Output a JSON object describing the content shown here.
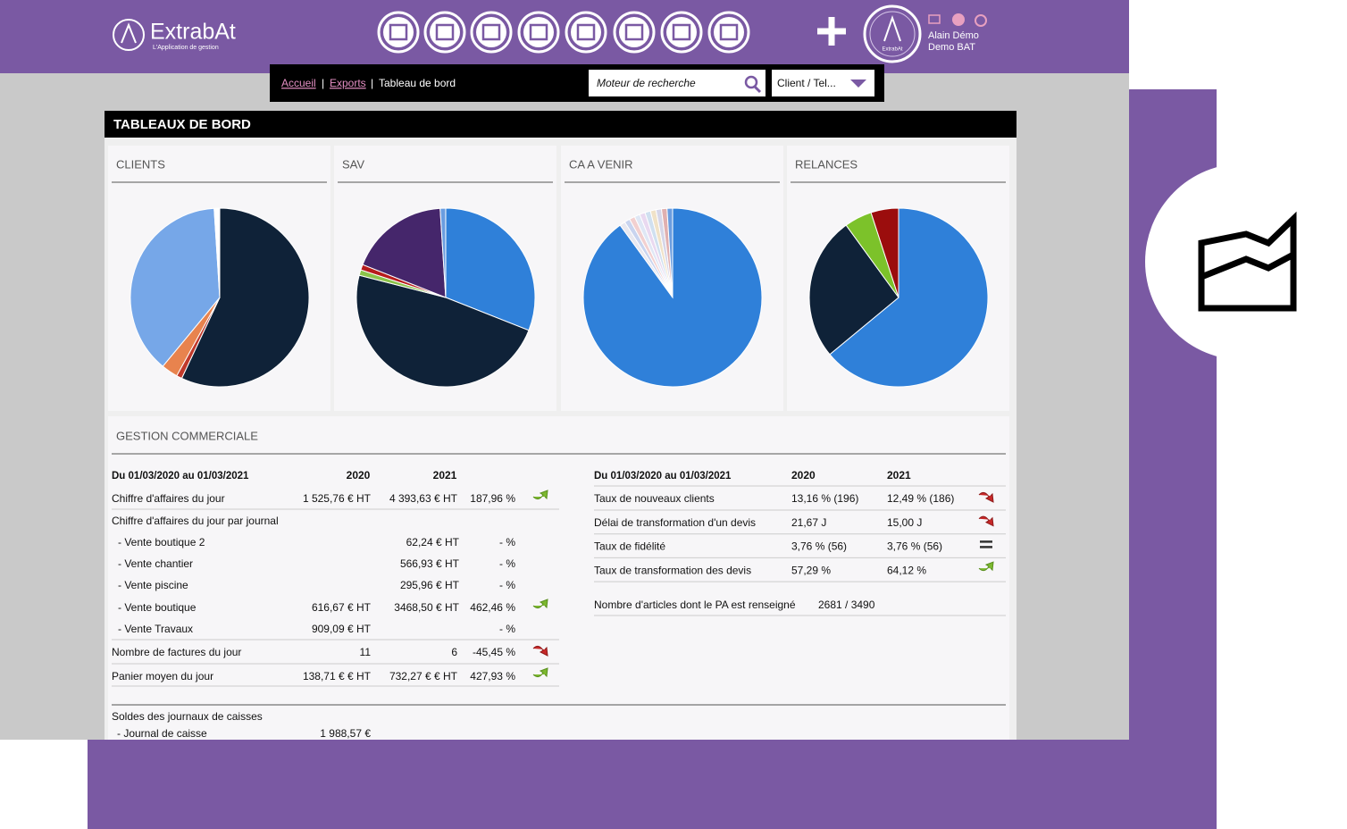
{
  "header": {
    "logo": "ExtrabAt",
    "tagline": "L'Application de gestion",
    "badge": "ExtrabAt",
    "user_name": "Alain Démo",
    "company": "Demo BAT"
  },
  "breadcrumb": [
    "Accueil",
    "Exports",
    "Tableau de bord"
  ],
  "search": {
    "placeholder": "Moteur de recherche",
    "select": "Client / Tel..."
  },
  "title": "TABLEAUX DE BORD",
  "panels": [
    {
      "title": "CLIENTS",
      "slices": [
        {
          "value": 57,
          "color": "#0f2238"
        },
        {
          "value": 1,
          "color": "#c0392b"
        },
        {
          "value": 3,
          "color": "#e8834e"
        },
        {
          "value": 38,
          "color": "#76a7e8"
        },
        {
          "value": 1,
          "color": "#ffffff"
        }
      ]
    },
    {
      "title": "SAV",
      "slices": [
        {
          "value": 31,
          "color": "#2f80d9"
        },
        {
          "value": 48,
          "color": "#0f2238"
        },
        {
          "value": 1,
          "color": "#8bc34a"
        },
        {
          "value": 1,
          "color": "#b71c1c"
        },
        {
          "value": 18,
          "color": "#45266b"
        },
        {
          "value": 1,
          "color": "#6a9de0"
        }
      ]
    },
    {
      "title": "CA A VENIR",
      "slices": [
        {
          "value": 90,
          "color": "#2f80d9"
        },
        {
          "value": 1,
          "color": "#e8e8f0"
        },
        {
          "value": 1,
          "color": "#c9d4ef"
        },
        {
          "value": 1,
          "color": "#f2d0d0"
        },
        {
          "value": 1,
          "color": "#dfe7f5"
        },
        {
          "value": 1,
          "color": "#e9d9f0"
        },
        {
          "value": 1,
          "color": "#d0e0f0"
        },
        {
          "value": 1,
          "color": "#f0e2c8"
        },
        {
          "value": 1,
          "color": "#d6d6e8"
        },
        {
          "value": 1,
          "color": "#e0b0b0"
        },
        {
          "value": 1,
          "color": "#6a9de0"
        }
      ]
    },
    {
      "title": "RELANCES",
      "slices": [
        {
          "value": 64,
          "color": "#2f80d9"
        },
        {
          "value": 26,
          "color": "#0f2238"
        },
        {
          "value": 5,
          "color": "#7cc22a"
        },
        {
          "value": 5,
          "color": "#9b0d0d"
        }
      ]
    }
  ],
  "commercial": {
    "title": "GESTION COMMERCIALE",
    "left": {
      "header": [
        "Du 01/03/2020 au 01/03/2021",
        "2020",
        "2021"
      ],
      "rows": [
        {
          "label": "Chiffre d'affaires du jour",
          "y2020": "1 525,76 € HT",
          "y2021": "4 393,63 € HT",
          "change": "187,96 %",
          "trend": "up"
        },
        {
          "label": "Chiffre d'affaires du jour par journal"
        },
        {
          "label": "- Vente boutique 2",
          "y2021": "62,24 € HT",
          "change": "- %"
        },
        {
          "label": "- Vente chantier",
          "y2021": "566,93 € HT",
          "change": "- %"
        },
        {
          "label": "- Vente piscine",
          "y2021": "295,96 € HT",
          "change": "- %"
        },
        {
          "label": "- Vente boutique",
          "y2020": "616,67 € HT",
          "y2021": "3468,50 € HT",
          "change": "462,46 %",
          "trend": "up"
        },
        {
          "label": "- Vente Travaux",
          "y2020": "909,09 € HT",
          "change": "- %"
        },
        {
          "label": "Nombre de factures du jour",
          "y2020": "11",
          "y2021": "6",
          "change": "-45,45 %",
          "trend": "down"
        },
        {
          "label": "Panier moyen du jour",
          "y2020": "138,71 € € HT",
          "y2021": "732,27 € € HT",
          "change": "427,93 %",
          "trend": "up"
        }
      ]
    },
    "right": {
      "header": [
        "Du 01/03/2020 au 01/03/2021",
        "2020",
        "2021"
      ],
      "rows": [
        {
          "label": "Taux de nouveaux clients",
          "y2020": "13,16 % (196)",
          "y2021": "12,49 % (186)",
          "trend": "down"
        },
        {
          "label": "Délai de transformation d'un devis",
          "y2020": "21,67 J",
          "y2021": "15,00 J",
          "trend": "down"
        },
        {
          "label": "Taux de fidélité",
          "y2020": "3,76 % (56)",
          "y2021": "3,76 % (56)",
          "trend": "equal"
        },
        {
          "label": "Taux de transformation des devis",
          "y2020": "57,29 %",
          "y2021": "64,12 %",
          "trend": "up"
        }
      ],
      "articles": {
        "label": "Nombre d'articles dont le PA est renseigné",
        "value": "2681 / 3490"
      }
    },
    "cash": {
      "title": "Soldes des journaux de caisses",
      "label": "- Journal de caisse",
      "value": "1 988,57 €"
    }
  }
}
